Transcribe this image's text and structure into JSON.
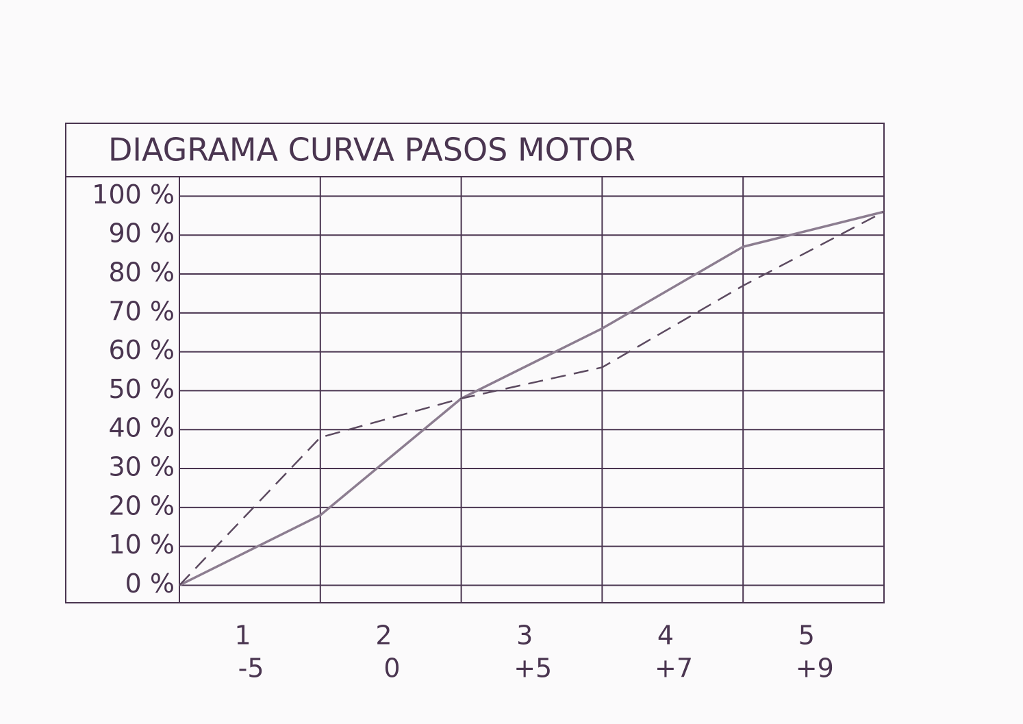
{
  "chart_data": {
    "type": "line",
    "title": "DIAGRAMA CURVA PASOS MOTOR",
    "categories": [
      null,
      "1",
      "2",
      "3",
      "4",
      "5"
    ],
    "categories2": [
      null,
      "-5",
      "0",
      "+5",
      "+7",
      "+9"
    ],
    "series": [
      {
        "color": "#8c7d90",
        "style": "solid",
        "values": [
          0,
          18,
          48,
          66,
          87,
          96
        ]
      },
      {
        "color": "#5c4a60",
        "style": "dashed",
        "values": [
          0,
          38,
          48,
          56,
          77,
          96
        ]
      }
    ],
    "ylim": [
      -4.5,
      105
    ],
    "yticks": [
      {
        "value": 0,
        "label": "0 %"
      },
      {
        "value": 10,
        "label": "10 %"
      },
      {
        "value": 20,
        "label": "20 %"
      },
      {
        "value": 30,
        "label": "30 %"
      },
      {
        "value": 40,
        "label": "40 %"
      },
      {
        "value": 50,
        "label": "50 %"
      },
      {
        "value": 60,
        "label": "60 %"
      },
      {
        "value": 70,
        "label": "70 %"
      },
      {
        "value": 80,
        "label": "80 %"
      },
      {
        "value": 90,
        "label": "90 %"
      },
      {
        "value": 100,
        "label": "100 %"
      }
    ],
    "grid": true
  }
}
